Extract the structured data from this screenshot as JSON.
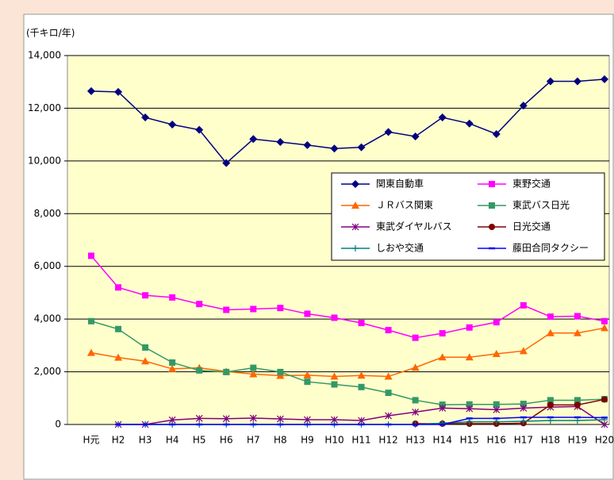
{
  "chart_data": {
    "type": "line",
    "y_axis_label": "(千キロ/年)",
    "categories": [
      "H元",
      "H2",
      "H3",
      "H4",
      "H5",
      "H6",
      "H7",
      "H8",
      "H9",
      "H10",
      "H11",
      "H12",
      "H13",
      "H14",
      "H15",
      "H16",
      "H17",
      "H18",
      "H19",
      "H20"
    ],
    "ylim": [
      0,
      14000
    ],
    "yticks": [
      0,
      {
        "value": 2000,
        "label": "2,000"
      },
      {
        "value": 4000,
        "label": "4,000"
      },
      {
        "value": 6000,
        "label": "6,000"
      },
      {
        "value": 8000,
        "label": "8,000"
      },
      {
        "value": 10000,
        "label": "10,000"
      },
      {
        "value": 12000,
        "label": "12,000"
      },
      {
        "value": 14000,
        "label": "14,000"
      }
    ],
    "grid": true,
    "legend": "right",
    "series": [
      {
        "name": "関東自動車",
        "color": "#000080",
        "marker": "diamond",
        "values": [
          12650,
          12620,
          11650,
          11380,
          11180,
          9920,
          10830,
          10720,
          10600,
          10470,
          10520,
          11100,
          10930,
          11650,
          11420,
          11020,
          12100,
          13020,
          13020,
          13100
        ]
      },
      {
        "name": "東野交通",
        "color": "#ff00ff",
        "marker": "square",
        "values": [
          6400,
          5200,
          4900,
          4820,
          4570,
          4350,
          4380,
          4420,
          4200,
          4050,
          3850,
          3580,
          3290,
          3460,
          3680,
          3880,
          4520,
          4090,
          4110,
          3920
        ]
      },
      {
        "name": "ＪＲバス関東",
        "color": "#ff6600",
        "marker": "triangle",
        "values": [
          2720,
          2540,
          2400,
          2110,
          2150,
          2010,
          1910,
          1850,
          1870,
          1820,
          1860,
          1820,
          2160,
          2550,
          2550,
          2680,
          2790,
          3470,
          3470,
          3660
        ]
      },
      {
        "name": "東武バス日光",
        "color": "#339966",
        "marker": "square",
        "values": [
          3920,
          3620,
          2920,
          2350,
          2050,
          1990,
          2150,
          1990,
          1620,
          1520,
          1420,
          1200,
          920,
          750,
          760,
          760,
          780,
          920,
          920,
          960
        ]
      },
      {
        "name": "東武ダイヤルバス",
        "color": "#800080",
        "marker": "star",
        "values": [
          null,
          0,
          0,
          170,
          230,
          220,
          240,
          210,
          180,
          180,
          150,
          330,
          470,
          620,
          600,
          560,
          620,
          660,
          680,
          0
        ]
      },
      {
        "name": "日光交通",
        "color": "#800000",
        "marker": "circle",
        "values": [
          null,
          null,
          null,
          null,
          null,
          null,
          null,
          null,
          null,
          null,
          null,
          null,
          30,
          30,
          30,
          30,
          50,
          740,
          740,
          950
        ]
      },
      {
        "name": "しおや交通",
        "color": "#008080",
        "marker": "plus",
        "values": [
          null,
          0,
          0,
          0,
          0,
          0,
          0,
          0,
          0,
          0,
          0,
          0,
          0,
          50,
          100,
          100,
          120,
          150,
          150,
          180
        ]
      },
      {
        "name": "藤田合同タクシー",
        "color": "#0000ff",
        "marker": "dash",
        "values": [
          null,
          0,
          0,
          0,
          0,
          0,
          0,
          0,
          0,
          0,
          0,
          0,
          0,
          0,
          230,
          230,
          270,
          270,
          270,
          260
        ]
      }
    ]
  }
}
